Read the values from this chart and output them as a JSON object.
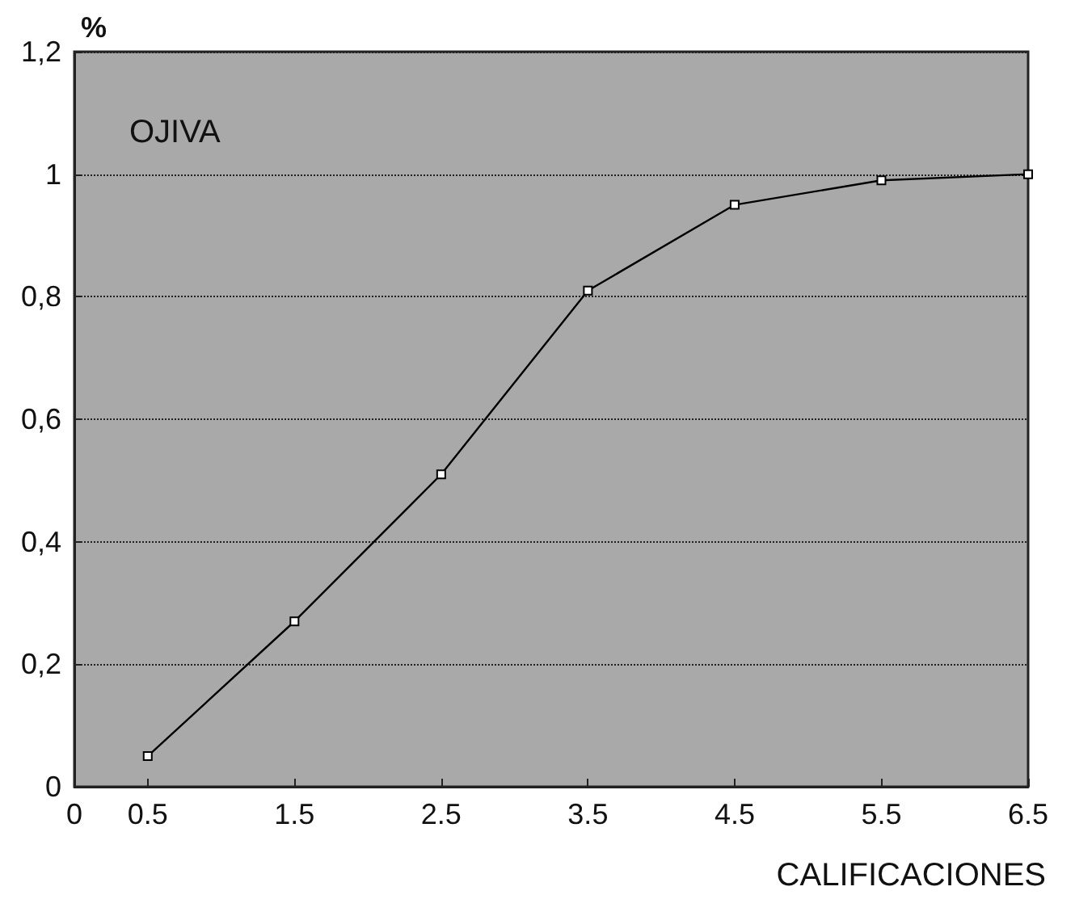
{
  "chart_data": {
    "type": "line",
    "ylabel": "%",
    "xlabel": "CALIFICACIONES",
    "annotations": [
      "OJIVA"
    ],
    "x": [
      0.5,
      1.5,
      2.5,
      3.5,
      4.5,
      5.5,
      6.5
    ],
    "series": [
      {
        "color": "#000000",
        "values": [
          0.05,
          0.27,
          0.51,
          0.81,
          0.95,
          0.99,
          1.0
        ]
      }
    ],
    "xlim": [
      0,
      6.5
    ],
    "xticks": [
      0,
      0.5,
      1.5,
      2.5,
      3.5,
      4.5,
      5.5,
      6.5
    ],
    "ylim": [
      0,
      1.2
    ],
    "yticks": [
      0,
      {
        "value": 0.2,
        "label": "0,2"
      },
      {
        "value": 0.4,
        "label": "0,4"
      },
      {
        "value": 0.6,
        "label": "0,6"
      },
      {
        "value": 0.8,
        "label": "0,8"
      },
      1,
      {
        "value": 1.2,
        "label": "1,2"
      }
    ],
    "grid": "y",
    "marker": "square",
    "line_style": "solid"
  }
}
